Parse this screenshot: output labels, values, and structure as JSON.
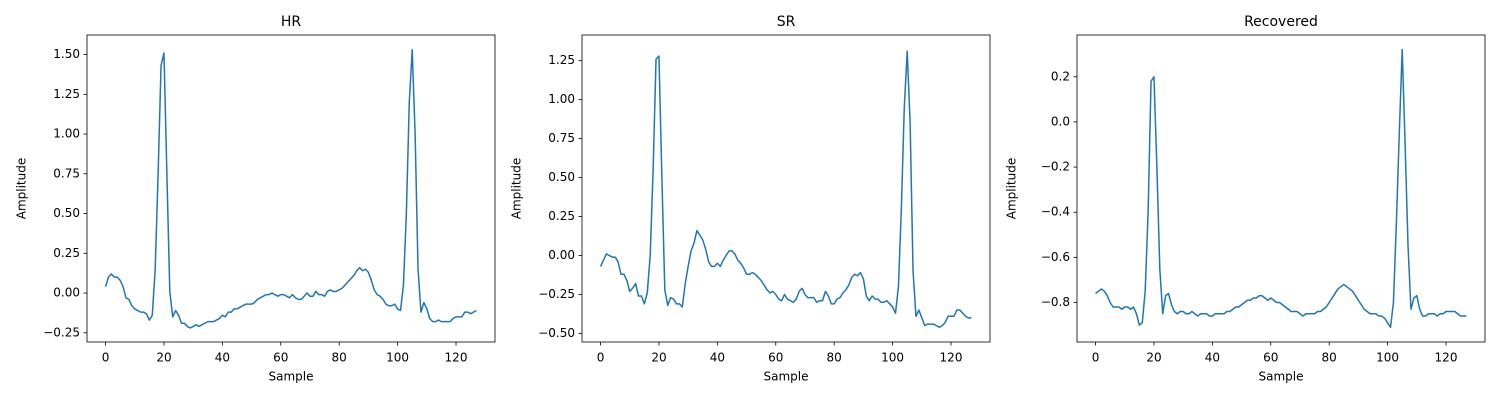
{
  "chart_data": [
    {
      "type": "line",
      "title": "HR",
      "xlabel": "Sample",
      "ylabel": "Amplitude",
      "color": "#1f77b4",
      "x": [
        0,
        1,
        2,
        3,
        4,
        5,
        6,
        7,
        8,
        9,
        10,
        11,
        12,
        13,
        14,
        15,
        16,
        17,
        18,
        19,
        20,
        21,
        22,
        23,
        24,
        25,
        26,
        27,
        28,
        29,
        30,
        31,
        32,
        33,
        34,
        35,
        36,
        37,
        38,
        39,
        40,
        41,
        42,
        43,
        44,
        45,
        46,
        47,
        48,
        49,
        50,
        51,
        52,
        53,
        54,
        55,
        56,
        57,
        58,
        59,
        60,
        61,
        62,
        63,
        64,
        65,
        66,
        67,
        68,
        69,
        70,
        71,
        72,
        73,
        74,
        75,
        76,
        77,
        78,
        79,
        80,
        81,
        82,
        83,
        84,
        85,
        86,
        87,
        88,
        89,
        90,
        91,
        92,
        93,
        94,
        95,
        96,
        97,
        98,
        99,
        100,
        101,
        102,
        103,
        104,
        105,
        106,
        107,
        108,
        109,
        110,
        111,
        112,
        113,
        114,
        115,
        116,
        117,
        118,
        119,
        120,
        121,
        122,
        123,
        124,
        125,
        126,
        127
      ],
      "values": [
        0.04,
        0.1,
        0.12,
        0.1,
        0.1,
        0.08,
        0.04,
        -0.03,
        -0.04,
        -0.08,
        -0.1,
        -0.11,
        -0.12,
        -0.12,
        -0.13,
        -0.17,
        -0.14,
        0.15,
        0.75,
        1.43,
        1.51,
        0.75,
        0.01,
        -0.15,
        -0.11,
        -0.14,
        -0.19,
        -0.19,
        -0.21,
        -0.22,
        -0.21,
        -0.2,
        -0.21,
        -0.2,
        -0.19,
        -0.18,
        -0.18,
        -0.18,
        -0.17,
        -0.16,
        -0.14,
        -0.15,
        -0.12,
        -0.12,
        -0.1,
        -0.1,
        -0.09,
        -0.08,
        -0.07,
        -0.07,
        -0.07,
        -0.06,
        -0.04,
        -0.03,
        -0.02,
        -0.01,
        -0.01,
        0.0,
        -0.01,
        -0.02,
        -0.01,
        -0.01,
        -0.02,
        -0.03,
        -0.01,
        -0.03,
        -0.04,
        -0.04,
        -0.02,
        0.0,
        -0.02,
        -0.02,
        0.01,
        -0.01,
        -0.01,
        -0.02,
        0.01,
        0.02,
        0.01,
        0.01,
        0.02,
        0.03,
        0.05,
        0.07,
        0.09,
        0.11,
        0.14,
        0.16,
        0.14,
        0.15,
        0.13,
        0.08,
        0.02,
        -0.01,
        -0.02,
        -0.04,
        -0.07,
        -0.08,
        -0.08,
        -0.07,
        -0.1,
        -0.11,
        0.05,
        0.5,
        1.2,
        1.53,
        1.0,
        0.15,
        -0.12,
        -0.06,
        -0.1,
        -0.16,
        -0.18,
        -0.18,
        -0.17,
        -0.18,
        -0.18,
        -0.18,
        -0.18,
        -0.16,
        -0.15,
        -0.15,
        -0.15,
        -0.12,
        -0.12,
        -0.13,
        -0.12,
        -0.11
      ],
      "xlim": [
        -6.35,
        133.35
      ],
      "xticks": [
        0,
        20,
        40,
        60,
        80,
        100,
        120
      ],
      "ylim": [
        -0.308,
        1.623
      ],
      "yticks": [
        {
          "value": -0.25,
          "label": "−0.25"
        },
        {
          "value": 0,
          "label": "0.00"
        },
        0.25,
        {
          "value": 0.5,
          "label": "0.50"
        },
        0.75,
        {
          "value": 1,
          "label": "1.00"
        },
        1.25,
        {
          "value": 1.5,
          "label": "1.50"
        }
      ]
    },
    {
      "type": "line",
      "title": "SR",
      "xlabel": "Sample",
      "ylabel": "Amplitude",
      "color": "#1f77b4",
      "x": [
        0,
        1,
        2,
        3,
        4,
        5,
        6,
        7,
        8,
        9,
        10,
        11,
        12,
        13,
        14,
        15,
        16,
        17,
        18,
        19,
        20,
        21,
        22,
        23,
        24,
        25,
        26,
        27,
        28,
        29,
        30,
        31,
        32,
        33,
        34,
        35,
        36,
        37,
        38,
        39,
        40,
        41,
        42,
        43,
        44,
        45,
        46,
        47,
        48,
        49,
        50,
        51,
        52,
        53,
        54,
        55,
        56,
        57,
        58,
        59,
        60,
        61,
        62,
        63,
        64,
        65,
        66,
        67,
        68,
        69,
        70,
        71,
        72,
        73,
        74,
        75,
        76,
        77,
        78,
        79,
        80,
        81,
        82,
        83,
        84,
        85,
        86,
        87,
        88,
        89,
        90,
        91,
        92,
        93,
        94,
        95,
        96,
        97,
        98,
        99,
        100,
        101,
        102,
        103,
        104,
        105,
        106,
        107,
        108,
        109,
        110,
        111,
        112,
        113,
        114,
        115,
        116,
        117,
        118,
        119,
        120,
        121,
        122,
        123,
        124,
        125,
        126,
        127
      ],
      "values": [
        -0.07,
        -0.03,
        0.01,
        0.0,
        -0.01,
        -0.01,
        -0.04,
        -0.12,
        -0.12,
        -0.16,
        -0.23,
        -0.21,
        -0.18,
        -0.26,
        -0.26,
        -0.31,
        -0.24,
        0.0,
        0.55,
        1.26,
        1.28,
        0.5,
        -0.22,
        -0.32,
        -0.27,
        -0.28,
        -0.31,
        -0.31,
        -0.33,
        -0.18,
        -0.07,
        0.03,
        0.08,
        0.16,
        0.13,
        0.1,
        0.04,
        -0.04,
        -0.07,
        -0.07,
        -0.05,
        -0.07,
        -0.03,
        0.0,
        0.03,
        0.03,
        0.01,
        -0.03,
        -0.05,
        -0.08,
        -0.12,
        -0.12,
        -0.11,
        -0.12,
        -0.14,
        -0.16,
        -0.19,
        -0.22,
        -0.24,
        -0.23,
        -0.25,
        -0.28,
        -0.29,
        -0.25,
        -0.28,
        -0.29,
        -0.3,
        -0.28,
        -0.23,
        -0.21,
        -0.25,
        -0.27,
        -0.27,
        -0.27,
        -0.3,
        -0.29,
        -0.29,
        -0.23,
        -0.26,
        -0.31,
        -0.31,
        -0.28,
        -0.27,
        -0.24,
        -0.22,
        -0.19,
        -0.14,
        -0.12,
        -0.13,
        -0.11,
        -0.15,
        -0.26,
        -0.29,
        -0.26,
        -0.28,
        -0.28,
        -0.3,
        -0.3,
        -0.29,
        -0.31,
        -0.33,
        -0.37,
        -0.2,
        0.3,
        0.95,
        1.31,
        0.85,
        -0.1,
        -0.39,
        -0.35,
        -0.4,
        -0.45,
        -0.44,
        -0.44,
        -0.44,
        -0.45,
        -0.46,
        -0.45,
        -0.43,
        -0.39,
        -0.39,
        -0.39,
        -0.35,
        -0.35,
        -0.37,
        -0.39,
        -0.4,
        -0.4
      ],
      "xlim": [
        -6.35,
        133.35
      ],
      "xticks": [
        0,
        20,
        40,
        60,
        80,
        100,
        120
      ],
      "ylim": [
        -0.555,
        1.415
      ],
      "yticks": [
        {
          "value": -0.5,
          "label": "−0.50"
        },
        {
          "value": -0.25,
          "label": "−0.25"
        },
        {
          "value": 0,
          "label": "0.00"
        },
        0.25,
        {
          "value": 0.5,
          "label": "0.50"
        },
        0.75,
        {
          "value": 1,
          "label": "1.00"
        },
        1.25
      ]
    },
    {
      "type": "line",
      "title": "Recovered",
      "xlabel": "Sample",
      "ylabel": "Amplitude",
      "color": "#1f77b4",
      "x": [
        0,
        1,
        2,
        3,
        4,
        5,
        6,
        7,
        8,
        9,
        10,
        11,
        12,
        13,
        14,
        15,
        16,
        17,
        18,
        19,
        20,
        21,
        22,
        23,
        24,
        25,
        26,
        27,
        28,
        29,
        30,
        31,
        32,
        33,
        34,
        35,
        36,
        37,
        38,
        39,
        40,
        41,
        42,
        43,
        44,
        45,
        46,
        47,
        48,
        49,
        50,
        51,
        52,
        53,
        54,
        55,
        56,
        57,
        58,
        59,
        60,
        61,
        62,
        63,
        64,
        65,
        66,
        67,
        68,
        69,
        70,
        71,
        72,
        73,
        74,
        75,
        76,
        77,
        78,
        79,
        80,
        81,
        82,
        83,
        84,
        85,
        86,
        87,
        88,
        89,
        90,
        91,
        92,
        93,
        94,
        95,
        96,
        97,
        98,
        99,
        100,
        101,
        102,
        103,
        104,
        105,
        106,
        107,
        108,
        109,
        110,
        111,
        112,
        113,
        114,
        115,
        116,
        117,
        118,
        119,
        120,
        121,
        122,
        123,
        124,
        125,
        126,
        127
      ],
      "values": [
        -0.76,
        -0.75,
        -0.74,
        -0.75,
        -0.77,
        -0.8,
        -0.82,
        -0.82,
        -0.82,
        -0.83,
        -0.82,
        -0.82,
        -0.83,
        -0.82,
        -0.85,
        -0.9,
        -0.89,
        -0.75,
        -0.4,
        0.18,
        0.2,
        -0.2,
        -0.65,
        -0.85,
        -0.77,
        -0.76,
        -0.81,
        -0.84,
        -0.85,
        -0.84,
        -0.84,
        -0.85,
        -0.85,
        -0.84,
        -0.85,
        -0.86,
        -0.85,
        -0.85,
        -0.85,
        -0.86,
        -0.86,
        -0.85,
        -0.85,
        -0.85,
        -0.85,
        -0.84,
        -0.84,
        -0.83,
        -0.82,
        -0.82,
        -0.81,
        -0.8,
        -0.79,
        -0.79,
        -0.78,
        -0.78,
        -0.77,
        -0.77,
        -0.78,
        -0.79,
        -0.78,
        -0.79,
        -0.8,
        -0.8,
        -0.81,
        -0.82,
        -0.83,
        -0.84,
        -0.84,
        -0.84,
        -0.85,
        -0.86,
        -0.85,
        -0.85,
        -0.85,
        -0.85,
        -0.84,
        -0.84,
        -0.83,
        -0.82,
        -0.8,
        -0.78,
        -0.76,
        -0.74,
        -0.73,
        -0.72,
        -0.73,
        -0.74,
        -0.75,
        -0.77,
        -0.79,
        -0.81,
        -0.83,
        -0.84,
        -0.85,
        -0.85,
        -0.85,
        -0.86,
        -0.86,
        -0.87,
        -0.89,
        -0.91,
        -0.8,
        -0.45,
        -0.05,
        0.32,
        -0.1,
        -0.55,
        -0.83,
        -0.78,
        -0.77,
        -0.83,
        -0.86,
        -0.86,
        -0.85,
        -0.85,
        -0.85,
        -0.86,
        -0.85,
        -0.85,
        -0.84,
        -0.84,
        -0.84,
        -0.84,
        -0.85,
        -0.86,
        -0.86,
        -0.86
      ],
      "xlim": [
        -6.35,
        133.35
      ],
      "xticks": [
        0,
        20,
        40,
        60,
        80,
        100,
        120
      ],
      "ylim": [
        -0.975,
        0.385
      ],
      "yticks": [
        {
          "value": -0.8,
          "label": "−0.8"
        },
        {
          "value": -0.6,
          "label": "−0.6"
        },
        {
          "value": -0.4,
          "label": "−0.4"
        },
        {
          "value": -0.2,
          "label": "−0.2"
        },
        {
          "value": 0,
          "label": "0.0"
        },
        0.2
      ]
    }
  ]
}
